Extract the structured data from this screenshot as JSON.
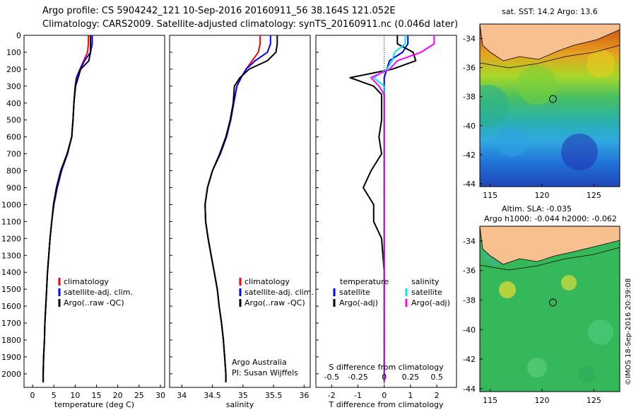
{
  "titles": {
    "line1": "Argo profile: CS 5904242_121 10-Sep-2016 20160911_56 38.164S 121.052E",
    "line2": "Climatology: CARS2009. Satellite-adjusted climatology: synTS_20160911.nc (0.046d later)",
    "map_sst": "sat. SST: 14.2 Argo: 13.6",
    "map_sla1": "Altim. SLA: -0.035",
    "map_sla2": "Argo h1000: -0.044 h2000: -0.062",
    "stamp": "©IMOS 18-Sep-2016 20:39:08"
  },
  "labels": {
    "temp_xlabel": "temperature (deg C)",
    "sal_xlabel": "salinity",
    "diff_xlabel": "T difference from climatology",
    "diff_top_label": "S difference from climatology",
    "argo_line1": "Argo Australia",
    "argo_line2": "PI: Susan Wijffels"
  },
  "legend_temp": [
    {
      "label": "climatology",
      "color": "#ff0000"
    },
    {
      "label": "satellite-adj. clim.",
      "color": "#0000ff"
    },
    {
      "label": "Argo(..raw -QC)",
      "color": "#000000"
    }
  ],
  "legend_sal": [
    {
      "label": "climatology",
      "color": "#ff0000"
    },
    {
      "label": "satellite-adj. clim.",
      "color": "#0000ff"
    },
    {
      "label": "Argo(..raw -QC)",
      "color": "#000000"
    }
  ],
  "legend_diff": {
    "head_left": "temperature",
    "head_right": "salinity",
    "items": [
      {
        "label": "satellite",
        "color": "#0000ff",
        "side": "left"
      },
      {
        "label": "Argo(-adj)",
        "color": "#000000",
        "side": "left"
      },
      {
        "label": "satellite",
        "color": "#00e5ee",
        "side": "right"
      },
      {
        "label": "Argo(-adj)",
        "color": "#ff00ff",
        "side": "right"
      }
    ]
  },
  "chart_data": [
    {
      "type": "line",
      "xlabel": "temperature (deg C)",
      "xlim": [
        -2,
        31
      ],
      "ylim": [
        0,
        2080
      ],
      "xticks": [
        "0",
        "5",
        "10",
        "15",
        "20",
        "25",
        "30"
      ],
      "yticks": [
        "0",
        "100",
        "200",
        "300",
        "400",
        "500",
        "600",
        "700",
        "800",
        "900",
        "1000",
        "1100",
        "1200",
        "1300",
        "1400",
        "1500",
        "1600",
        "1700",
        "1800",
        "1900",
        "2000"
      ],
      "depth": [
        0,
        50,
        100,
        150,
        200,
        250,
        300,
        400,
        500,
        600,
        700,
        800,
        900,
        1000,
        1100,
        1200,
        1300,
        1400,
        1500,
        1600,
        1700,
        1800,
        1900,
        2000,
        2050
      ],
      "series": [
        {
          "name": "climatology",
          "color": "#ff0000",
          "values": [
            13.1,
            13.1,
            12.9,
            12.0,
            11.1,
            10.3,
            10.0,
            9.7,
            9.5,
            9.2,
            8.2,
            6.8,
            5.8,
            5.0,
            4.5,
            4.1,
            3.8,
            3.5,
            3.3,
            3.1,
            2.9,
            2.8,
            2.6,
            2.5,
            2.5
          ]
        },
        {
          "name": "satellite-adj. clim.",
          "color": "#0000ff",
          "values": [
            14.0,
            14.0,
            13.6,
            12.2,
            11.2,
            10.3,
            10.0,
            9.7,
            9.5,
            9.2,
            8.2,
            6.8,
            5.8,
            5.0,
            4.5,
            4.1,
            3.8,
            3.5,
            3.3,
            3.1,
            2.9,
            2.8,
            2.6,
            2.5,
            2.5
          ]
        },
        {
          "name": "Argo(..raw -QC)",
          "color": "#000000",
          "values": [
            13.6,
            13.6,
            13.6,
            13.2,
            11.3,
            10.7,
            10.1,
            9.7,
            9.5,
            9.2,
            8.1,
            6.6,
            5.6,
            4.9,
            4.5,
            4.1,
            3.8,
            3.5,
            3.3,
            3.1,
            2.9,
            2.8,
            2.6,
            2.5,
            2.5
          ]
        }
      ]
    },
    {
      "type": "line",
      "xlabel": "salinity",
      "xlim": [
        33.8,
        36.1
      ],
      "ylim": [
        0,
        2080
      ],
      "xticks": [
        "34",
        "34.5",
        "35",
        "35.5",
        "36"
      ],
      "depth": [
        0,
        50,
        100,
        150,
        200,
        250,
        300,
        400,
        500,
        600,
        700,
        800,
        900,
        1000,
        1100,
        1200,
        1300,
        1400,
        1500,
        1600,
        1700,
        1800,
        1900,
        2000,
        2050
      ],
      "series": [
        {
          "name": "climatology",
          "color": "#ff0000",
          "values": [
            35.28,
            35.28,
            35.25,
            35.15,
            35.05,
            34.97,
            34.9,
            34.85,
            34.8,
            34.73,
            34.63,
            34.5,
            34.42,
            34.38,
            34.39,
            34.43,
            34.48,
            34.53,
            34.58,
            34.61,
            34.65,
            34.68,
            34.7,
            34.72,
            34.72
          ]
        },
        {
          "name": "satellite-adj. clim.",
          "color": "#0000ff",
          "values": [
            35.45,
            35.45,
            35.4,
            35.2,
            35.05,
            34.97,
            34.9,
            34.85,
            34.8,
            34.73,
            34.63,
            34.5,
            34.42,
            34.38,
            34.39,
            34.43,
            34.48,
            34.53,
            34.58,
            34.61,
            34.65,
            34.68,
            34.7,
            34.72,
            34.72
          ]
        },
        {
          "name": "Argo(..raw -QC)",
          "color": "#000000",
          "values": [
            35.56,
            35.56,
            35.54,
            35.4,
            35.1,
            34.95,
            34.86,
            34.84,
            34.79,
            34.72,
            34.62,
            34.5,
            34.42,
            34.38,
            34.39,
            34.43,
            34.48,
            34.53,
            34.58,
            34.61,
            34.65,
            34.68,
            34.7,
            34.72,
            34.72
          ]
        }
      ]
    },
    {
      "type": "line",
      "xlabel": "T difference from climatology",
      "top_xlabel": "S difference from climatology",
      "xlim": [
        -2.6,
        2.75
      ],
      "ylim": [
        0,
        2080
      ],
      "xticks": [
        "-2",
        "-1",
        "0",
        "1",
        "2"
      ],
      "top_xticks": [
        "-0.5",
        "-0.25",
        "0",
        "0.25",
        "0.5"
      ],
      "depth": [
        0,
        50,
        100,
        150,
        200,
        250,
        300,
        350,
        400,
        500,
        600,
        700,
        800,
        900,
        1000,
        1100,
        1200,
        1400,
        1600,
        1800,
        2000,
        2050
      ],
      "series": [
        {
          "name": "temperature satellite",
          "color": "#0000ff",
          "values": [
            0.9,
            0.9,
            0.7,
            0.2,
            0.1,
            0,
            0,
            0,
            0,
            0,
            0,
            0,
            0,
            0,
            0,
            0,
            0,
            0,
            0,
            0,
            0,
            0
          ]
        },
        {
          "name": "temperature Argo(-adj)",
          "color": "#000000",
          "values": [
            0.5,
            0.5,
            1.1,
            1.2,
            0.3,
            -1.3,
            -0.4,
            -0.1,
            -0.1,
            -0.1,
            -0.2,
            -0.1,
            -0.5,
            -0.8,
            -0.4,
            -0.4,
            -0.1,
            0,
            0,
            0,
            0,
            0
          ]
        },
        {
          "name": "salinity satellite",
          "color": "#00e5ee",
          "values": [
            0.8,
            0.8,
            0.4,
            0.3,
            0.1,
            -0.4,
            0,
            0,
            0,
            0,
            0,
            0,
            0,
            0,
            0,
            0,
            0,
            0,
            0,
            0,
            0,
            0
          ]
        },
        {
          "name": "salinity Argo(-adj)",
          "color": "#ff00ff",
          "values": [
            1.9,
            1.9,
            1.4,
            0.5,
            0.2,
            -0.5,
            -0.2,
            0,
            0,
            0,
            0,
            0,
            0,
            0,
            0,
            0,
            0,
            0,
            0,
            0,
            0,
            0
          ]
        }
      ]
    },
    {
      "type": "heatmap",
      "title": "sat. SST: 14.2 Argo: 13.6",
      "xticks": [
        "115",
        "120",
        "125"
      ],
      "yticks": [
        "-34",
        "-36",
        "-38",
        "-40",
        "-42",
        "-44"
      ],
      "marker": {
        "lon": 121.052,
        "lat": -38.164
      }
    },
    {
      "type": "heatmap",
      "title": "Altim. SLA: -0.035",
      "xticks": [
        "115",
        "120",
        "125"
      ],
      "yticks": [
        "-34",
        "-36",
        "-38",
        "-40",
        "-42",
        "-44"
      ],
      "marker": {
        "lon": 121.052,
        "lat": -38.164
      }
    }
  ],
  "colors": {
    "land": "#f8c08f",
    "sst_bg": "#3aa5c8",
    "sla_bg": "#35b85a"
  }
}
